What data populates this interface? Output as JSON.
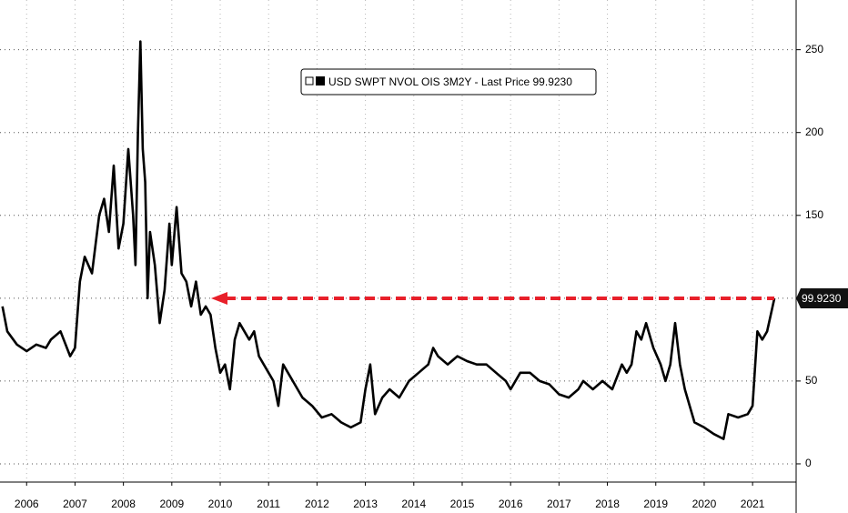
{
  "chart_data": {
    "type": "line",
    "legend": "USD SWPT NVOL OIS 3M2Y - Last Price 99.9230",
    "annotation": "99.9230",
    "color": "#000000",
    "arrow_color": "#e8202a",
    "grid": true,
    "xlim": [
      2005.95,
      2022.4
    ],
    "ylim": [
      -11,
      280
    ],
    "yticks": [
      0,
      50,
      100,
      150,
      200,
      250
    ],
    "xticks": [
      {
        "value": 2006.5,
        "label": "2006"
      },
      {
        "value": 2007.5,
        "label": "2007"
      },
      {
        "value": 2008.5,
        "label": "2008"
      },
      {
        "value": 2009.5,
        "label": "2009"
      },
      {
        "value": 2010.5,
        "label": "2010"
      },
      {
        "value": 2011.5,
        "label": "2011"
      },
      {
        "value": 2012.5,
        "label": "2012"
      },
      {
        "value": 2013.5,
        "label": "2013"
      },
      {
        "value": 2014.5,
        "label": "2014"
      },
      {
        "value": 2015.5,
        "label": "2015"
      },
      {
        "value": 2016.5,
        "label": "2016"
      },
      {
        "value": 2017.5,
        "label": "2017"
      },
      {
        "value": 2018.5,
        "label": "2018"
      },
      {
        "value": 2019.5,
        "label": "2019"
      },
      {
        "value": 2020.5,
        "label": "2020"
      },
      {
        "value": 2021.5,
        "label": "2021"
      }
    ],
    "x": [
      2006.0,
      2006.1,
      2006.3,
      2006.5,
      2006.7,
      2006.9,
      2007.0,
      2007.2,
      2007.4,
      2007.5,
      2007.6,
      2007.7,
      2007.85,
      2008.0,
      2008.1,
      2008.2,
      2008.3,
      2008.4,
      2008.5,
      2008.6,
      2008.7,
      2008.75,
      2008.8,
      2008.85,
      2008.9,
      2008.95,
      2009.0,
      2009.05,
      2009.15,
      2009.25,
      2009.35,
      2009.45,
      2009.5,
      2009.6,
      2009.7,
      2009.8,
      2009.9,
      2010.0,
      2010.1,
      2010.2,
      2010.3,
      2010.4,
      2010.5,
      2010.6,
      2010.7,
      2010.8,
      2010.9,
      2011.0,
      2011.1,
      2011.2,
      2011.3,
      2011.5,
      2011.6,
      2011.7,
      2011.8,
      2011.9,
      2012.0,
      2012.2,
      2012.4,
      2012.6,
      2012.8,
      2013.0,
      2013.2,
      2013.4,
      2013.5,
      2013.6,
      2013.7,
      2013.85,
      2014.0,
      2014.2,
      2014.4,
      2014.6,
      2014.8,
      2014.9,
      2015.0,
      2015.2,
      2015.4,
      2015.6,
      2015.8,
      2016.0,
      2016.2,
      2016.4,
      2016.5,
      2016.7,
      2016.9,
      2017.1,
      2017.3,
      2017.5,
      2017.7,
      2017.9,
      2018.0,
      2018.2,
      2018.4,
      2018.6,
      2018.8,
      2018.9,
      2019.0,
      2019.1,
      2019.2,
      2019.3,
      2019.45,
      2019.6,
      2019.7,
      2019.8,
      2019.9,
      2020.0,
      2020.1,
      2020.2,
      2020.3,
      2020.5,
      2020.7,
      2020.9,
      2021.0,
      2021.2,
      2021.4,
      2021.5,
      2021.6,
      2021.7,
      2021.8,
      2021.95
    ],
    "values": [
      95,
      80,
      72,
      68,
      72,
      70,
      75,
      80,
      65,
      70,
      110,
      125,
      115,
      150,
      160,
      140,
      180,
      130,
      145,
      190,
      150,
      120,
      200,
      255,
      190,
      170,
      100,
      140,
      120,
      85,
      105,
      145,
      120,
      155,
      115,
      110,
      95,
      110,
      90,
      95,
      90,
      70,
      55,
      60,
      45,
      75,
      85,
      80,
      75,
      80,
      65,
      55,
      50,
      35,
      60,
      55,
      50,
      40,
      35,
      28,
      30,
      25,
      22,
      25,
      45,
      60,
      30,
      40,
      45,
      40,
      50,
      55,
      60,
      70,
      65,
      60,
      65,
      62,
      60,
      60,
      55,
      50,
      45,
      55,
      55,
      50,
      48,
      42,
      40,
      45,
      50,
      45,
      50,
      45,
      60,
      55,
      60,
      80,
      75,
      85,
      70,
      60,
      50,
      60,
      85,
      60,
      45,
      35,
      25,
      22,
      18,
      15,
      30,
      28,
      30,
      35,
      80,
      75,
      80,
      99.923
    ]
  }
}
